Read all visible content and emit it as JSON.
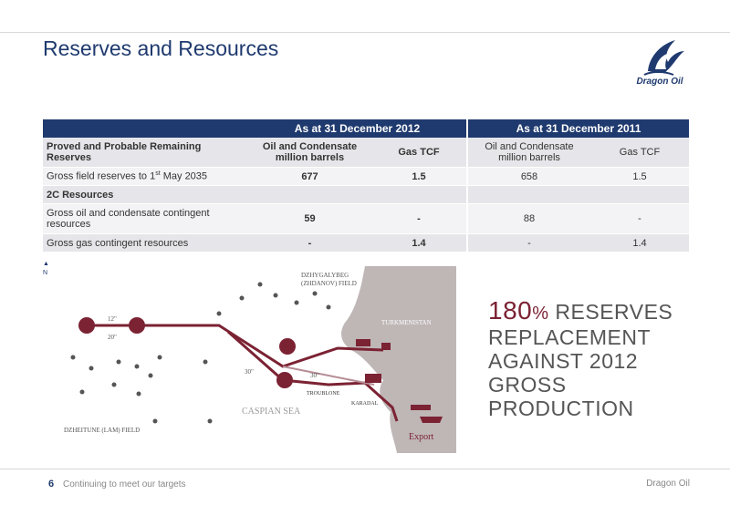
{
  "header": {
    "title": "Reserves and Resources",
    "logo_text": "Dragon Oil"
  },
  "table": {
    "group_headers": [
      "As at 31 December 2012",
      "As at 31 December 2011"
    ],
    "col_headers": {
      "label": "Proved and Probable Remaining Reserves",
      "oil_2012": "Oil and Condensate million barrels",
      "gas_2012": "Gas TCF",
      "oil_2011": "Oil and Condensate million barrels",
      "gas_2011": "Gas TCF"
    },
    "rows": [
      {
        "label": "Gross field reserves to 1",
        "sup": "st",
        "label_suffix": " May 2035",
        "oil_2012": "677",
        "gas_2012": "1.5",
        "oil_2011": "658",
        "gas_2011": "1.5"
      },
      {
        "label": "2C Resources"
      },
      {
        "label": "Gross oil and condensate contingent resources",
        "oil_2012": "59",
        "gas_2012": "-",
        "oil_2011": "88",
        "gas_2011": "-"
      },
      {
        "label": "Gross gas contingent resources",
        "oil_2012": "-",
        "gas_2012": "1.4",
        "oil_2011": "-",
        "gas_2011": "1.4"
      }
    ]
  },
  "map": {
    "north_label": "N",
    "labels": {
      "dzhygalybeg": "DZHYGALYBEG",
      "zhdanov": "(ZHDANOV) FIELD",
      "turkmenistan": "TURKMENISTAN",
      "caspian": "CASPIAN SEA",
      "troubline": "TROUBLONE",
      "karadi": "KARADAL",
      "dzheitune": "DZHEITUNE (LAM) FIELD",
      "export": "Export",
      "pipe_12": "12\"",
      "pipe_20": "20\"",
      "pipe_30a": "30\"",
      "pipe_30b": "30\""
    }
  },
  "headline": {
    "number": "180",
    "percent": "%",
    "line1_rest": " RESERVES",
    "line2": "REPLACEMENT",
    "line3": "AGAINST 2012",
    "line4": "GROSS PRODUCTION"
  },
  "footer": {
    "page": "6",
    "text": "Continuing to meet our targets",
    "right": "Dragon Oil"
  },
  "colors": {
    "navy": "#1f3a6e",
    "maroon": "#7b2233",
    "land": "#bfb6b6"
  }
}
